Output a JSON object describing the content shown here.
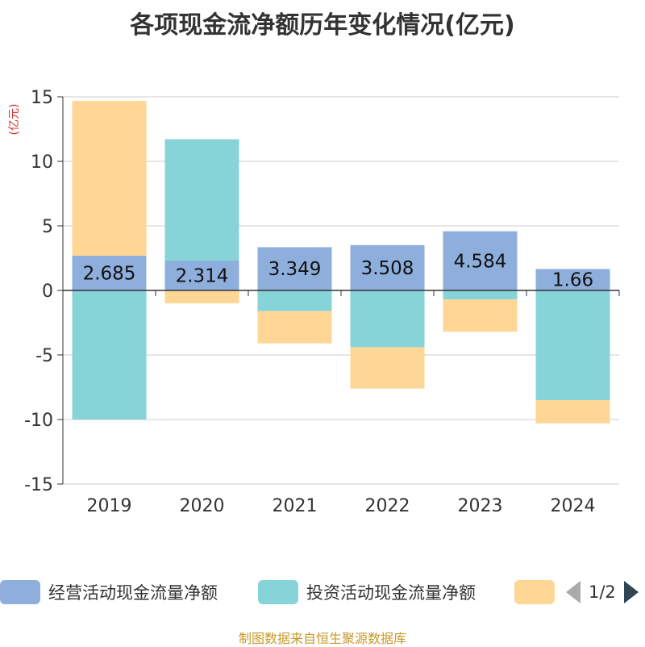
{
  "title": "各项现金流净额历年变化情况(亿元)",
  "unit_label": "(亿元)",
  "source": "制图数据来自恒生聚源数据库",
  "legend": {
    "items": [
      {
        "label": "经营活动现金流量净额",
        "color": "#8eaedc"
      },
      {
        "label": "投资活动现金流量净额",
        "color": "#86d4d7"
      },
      {
        "label": "",
        "color": "#fed797"
      }
    ],
    "page_text": "1/2"
  },
  "chart_data": {
    "type": "bar",
    "stacked": true,
    "categories": [
      "2019",
      "2020",
      "2021",
      "2022",
      "2023",
      "2024"
    ],
    "series": [
      {
        "name": "经营活动现金流量净额",
        "color": "#8eaedc",
        "values": [
          2.685,
          2.314,
          3.349,
          3.508,
          4.584,
          1.66
        ],
        "labels_shown": true
      },
      {
        "name": "投资活动现金流量净额",
        "color": "#86d4d7",
        "values": [
          -10.0,
          9.4,
          -1.6,
          -4.4,
          -0.7,
          -8.5
        ],
        "labels_shown": false
      },
      {
        "name": "",
        "color": "#fed797",
        "values": [
          12.0,
          -1.0,
          -2.5,
          -3.2,
          -2.5,
          -1.8
        ],
        "labels_shown": false
      }
    ],
    "data_labels": [
      "2.685",
      "2.314",
      "3.349",
      "3.508",
      "4.584",
      "1.66"
    ],
    "ylim": [
      -15,
      15
    ],
    "yticks": [
      15,
      10,
      5,
      0,
      -5,
      -10,
      -15
    ],
    "grid": true,
    "legend_position": "bottom"
  }
}
